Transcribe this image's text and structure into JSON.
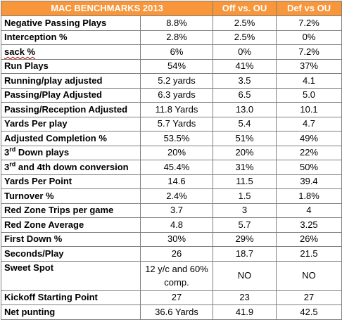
{
  "header": {
    "title": "MAC BENCHMARKS 2013",
    "col_off": "Off vs. OU",
    "col_def": "Def vs OU"
  },
  "rows": [
    {
      "label": "Negative Passing Plays",
      "mac": "8.8%",
      "off": "2.5%",
      "def": "7.2%"
    },
    {
      "label": "Interception %",
      "mac": "2.8%",
      "off": "2.5%",
      "def": "0%"
    },
    {
      "label": "sack %",
      "mac": "6%",
      "off": "0%",
      "def": "7.2%"
    },
    {
      "label": "Run Plays",
      "mac": "54%",
      "off": "41%",
      "def": "37%"
    },
    {
      "label": "Running/play adjusted",
      "mac": "5.2 yards",
      "off": "3.5",
      "def": "4.1"
    },
    {
      "label": "Passing/Play Adjusted",
      "mac": "6.3 yards",
      "off": "6.5",
      "def": "5.0"
    },
    {
      "label": "Passing/Reception Adjusted",
      "mac": "11.8 Yards",
      "off": "13.0",
      "def": "10.1"
    },
    {
      "label": "Yards Per play",
      "mac": "5.7 Yards",
      "off": "5.4",
      "def": "4.7"
    },
    {
      "label": "Adjusted Completion %",
      "mac": "53.5%",
      "off": "51%",
      "def": "49%"
    },
    {
      "label_num": "3",
      "label_sup": "rd",
      "label_rest": " Down plays",
      "mac": "20%",
      "off": "20%",
      "def": "22%"
    },
    {
      "label_num": "3",
      "label_sup": "rd",
      "label_rest": " and 4th down conversion",
      "mac": "45.4%",
      "off": "31%",
      "def": "50%"
    },
    {
      "label": "Yards Per Point",
      "mac": "14.6",
      "off": "11.5",
      "def": "39.4"
    },
    {
      "label": "Turnover %",
      "mac": "2.4%",
      "off": "1.5",
      "def": "1.8%"
    },
    {
      "label": "Red Zone Trips per game",
      "mac": "3.7",
      "off": "3",
      "def": "4"
    },
    {
      "label": "Red Zone Average",
      "mac": "4.8",
      "off": "5.7",
      "def": "3.25"
    },
    {
      "label": "First Down %",
      "mac": "30%",
      "off": "29%",
      "def": "26%"
    },
    {
      "label": "Seconds/Play",
      "mac": "26",
      "off": "18.7",
      "def": "21.5"
    },
    {
      "label": "Sweet Spot",
      "mac": "12 y/c and 60% comp.",
      "off": "NO",
      "def": "NO"
    },
    {
      "label": "Kickoff Starting Point",
      "mac": "27",
      "off": "23",
      "def": "27"
    },
    {
      "label": "Net punting",
      "mac": "36.6 Yards",
      "off": "41.9",
      "def": "42.5"
    }
  ]
}
